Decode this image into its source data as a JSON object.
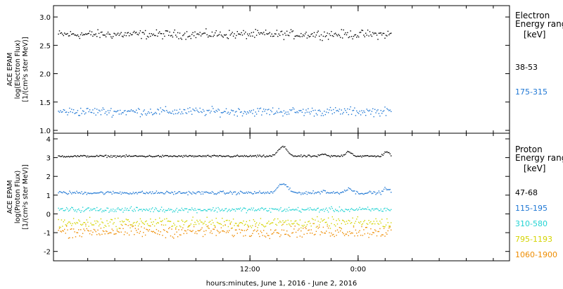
{
  "chart_data": [
    {
      "type": "scatter",
      "ylabel_lines": [
        "ACE EPAM",
        "log(Electron Flux)",
        "[1/(cm²s ster MeV)]"
      ],
      "ylim": [
        0.95,
        3.2
      ],
      "yticks": [
        1.0,
        1.5,
        2.0,
        2.5,
        3.0
      ],
      "ytick_labels": [
        "1.0",
        "1.5",
        "2.0",
        "2.5",
        "3.0"
      ],
      "legend_title_lines": [
        "Electron",
        "Energy ranges",
        "[keV]"
      ],
      "series": [
        {
          "name": "38-53",
          "color": "#000000",
          "base": 2.7,
          "noise": 0.07
        },
        {
          "name": "175-315",
          "color": "#1f77d4",
          "base": 1.34,
          "noise": 0.07
        }
      ]
    },
    {
      "type": "scatter",
      "ylabel_lines": [
        "ACE EPAM",
        "log(Proton Flux)",
        "[1/(cm²s ster MeV)]"
      ],
      "ylim": [
        -2.5,
        4.3
      ],
      "yticks": [
        -2,
        -1,
        0,
        1,
        2,
        3,
        4
      ],
      "ytick_labels": [
        "-2",
        "-1",
        "0",
        "1",
        "2",
        "3",
        "4"
      ],
      "legend_title_lines": [
        "Proton",
        "Energy ranges",
        "[keV]"
      ],
      "series": [
        {
          "name": "47-68",
          "color": "#000000",
          "base": 3.1,
          "noise": 0.05
        },
        {
          "name": "115-195",
          "color": "#1f77d4",
          "base": 1.15,
          "noise": 0.08
        },
        {
          "name": "310-580",
          "color": "#22d3d3",
          "base": 0.25,
          "noise": 0.12
        },
        {
          "name": "795-1193",
          "color": "#d4d400",
          "base": -0.45,
          "noise": 0.25
        },
        {
          "name": "1060-1900",
          "color": "#ee8c00",
          "base": -0.9,
          "noise": 0.3
        }
      ]
    }
  ],
  "x_axis": {
    "label": "hours:minutes, June  1, 2016 - June  2, 2016",
    "tick_labels": [
      {
        "hours": 12,
        "label": "12:00"
      },
      {
        "hours": 24,
        "label": "0:00"
      }
    ],
    "minor_tick_hours": [
      -6,
      -3,
      0,
      3,
      6,
      9,
      12,
      15,
      18,
      21,
      24,
      27,
      30,
      33,
      36,
      39
    ],
    "range_hours": [
      -9.8,
      40.8
    ],
    "data_range_hours": [
      -9.3,
      27.6
    ]
  }
}
